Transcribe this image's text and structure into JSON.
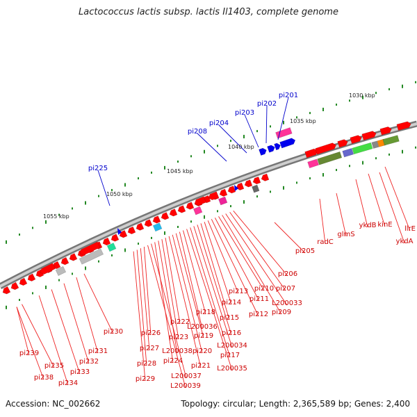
{
  "title": "Lactococcus lactis subsp. lactis Il1403, complete genome",
  "footer": {
    "accession": "Accession: NC_002662",
    "summary": "Topology: circular; Length: 2,365,589 bp; Genes: 2,400"
  },
  "scale_labels": [
    "1030 kbp",
    "1035 kbp",
    "1040 kbp",
    "1045 kbp",
    "1050 kbp",
    "1055 kbp"
  ],
  "labels_top": [
    "pi201",
    "pi202",
    "pi203",
    "pi204",
    "pi208",
    "pi225"
  ],
  "labels_right": [
    "llrE",
    "ykdA",
    "kinE",
    "ykdB",
    "glmS",
    "radC",
    "pi205"
  ],
  "labels_bottom": [
    "pi206",
    "pi207",
    "L200033",
    "pi209",
    "pi210",
    "pi211",
    "pi212",
    "pi213",
    "pi214",
    "pi215",
    "pi216",
    "L200034",
    "pi217",
    "L200035",
    "pi218",
    "L200036",
    "pi219",
    "pi220",
    "pi221",
    "pi222",
    "pi223",
    "L200038",
    "pi224",
    "L200037",
    "L200039",
    "pi226",
    "pi227",
    "pi228",
    "pi229",
    "pi230",
    "pi231",
    "pi232",
    "pi233",
    "pi234",
    "pi235",
    "pi238",
    "pi239"
  ],
  "colors": {
    "gene_red": "#ff0000",
    "gene_blue": "#0000ee",
    "backbone": "#999999",
    "tick_green": "#228822",
    "label_red": "#cc0000",
    "label_blue": "#0000cc"
  }
}
